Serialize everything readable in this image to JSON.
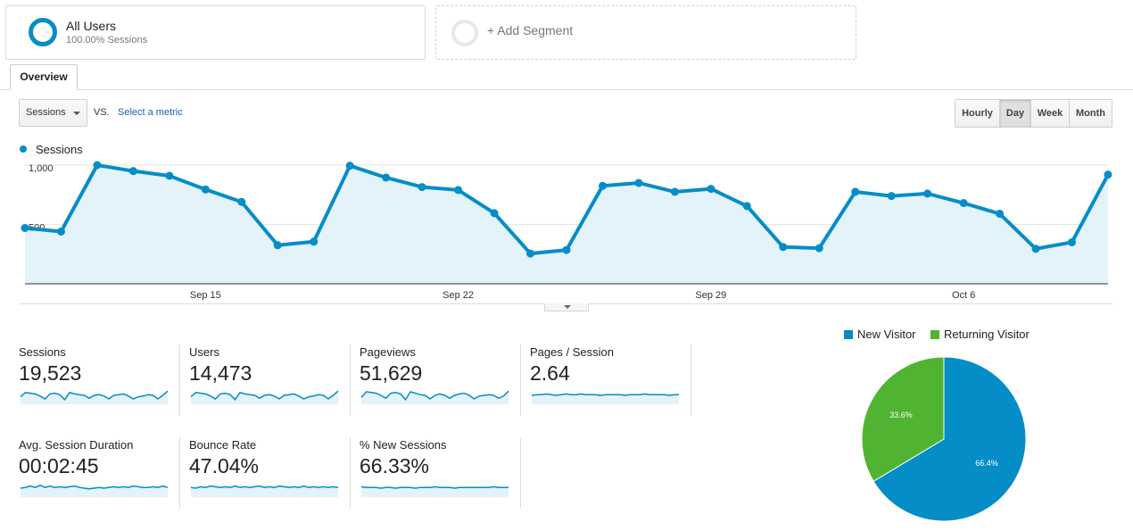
{
  "segments": {
    "all_users": {
      "title": "All Users",
      "subtitle": "100.00% Sessions"
    },
    "add_segment": {
      "label": "+ Add Segment"
    }
  },
  "tabs": [
    {
      "label": "Overview"
    }
  ],
  "controls": {
    "metric_select": "Sessions",
    "vs_label": "VS.",
    "select_metric": "Select a metric",
    "periods": [
      {
        "label": "Hourly",
        "active": false
      },
      {
        "label": "Day",
        "active": true
      },
      {
        "label": "Week",
        "active": false
      },
      {
        "label": "Month",
        "active": false
      }
    ]
  },
  "colors": {
    "series": "#058dc7",
    "area": "#e4f2f9",
    "new_visitor": "#058dc7",
    "returning_visitor": "#50b432"
  },
  "chart_data": [
    {
      "type": "line",
      "series": [
        {
          "name": "Sessions",
          "values": [
            470,
            440,
            1000,
            950,
            910,
            795,
            690,
            325,
            355,
            995,
            895,
            815,
            790,
            595,
            255,
            285,
            825,
            850,
            775,
            800,
            655,
            310,
            300,
            775,
            740,
            760,
            680,
            590,
            295,
            350,
            920
          ]
        }
      ],
      "x_ticks": [
        "Sep 15",
        "Sep 22",
        "Sep 29",
        "Oct 6"
      ],
      "y_ticks": [
        "500",
        "1,000"
      ],
      "ylim": [
        0,
        1000
      ],
      "grid": true,
      "legend": "top-left"
    },
    {
      "type": "pie",
      "categories": [
        "New Visitor",
        "Returning Visitor"
      ],
      "values": [
        66.4,
        33.6
      ],
      "labels": [
        "66.4%",
        "33.6%"
      ],
      "legend": "top"
    }
  ],
  "metrics": [
    {
      "label": "Sessions",
      "value": "19,523",
      "spark": [
        0.6,
        0.3,
        0.35,
        0.4,
        0.55,
        0.75,
        0.4,
        0.35,
        0.45,
        0.8,
        0.3,
        0.4,
        0.45,
        0.5,
        0.7,
        0.5,
        0.45,
        0.55,
        0.75,
        0.5,
        0.45,
        0.4,
        0.55,
        0.75,
        0.6,
        0.55,
        0.45,
        0.5,
        0.75,
        0.5,
        0.2
      ]
    },
    {
      "label": "Users",
      "value": "14,473",
      "spark": [
        0.6,
        0.3,
        0.35,
        0.4,
        0.55,
        0.75,
        0.4,
        0.35,
        0.45,
        0.8,
        0.3,
        0.4,
        0.45,
        0.5,
        0.7,
        0.5,
        0.45,
        0.55,
        0.75,
        0.5,
        0.45,
        0.4,
        0.55,
        0.75,
        0.6,
        0.55,
        0.45,
        0.5,
        0.75,
        0.5,
        0.2
      ]
    },
    {
      "label": "Pageviews",
      "value": "51,629",
      "spark": [
        0.65,
        0.25,
        0.3,
        0.35,
        0.5,
        0.7,
        0.35,
        0.3,
        0.4,
        0.8,
        0.25,
        0.35,
        0.45,
        0.5,
        0.75,
        0.5,
        0.4,
        0.5,
        0.7,
        0.5,
        0.4,
        0.35,
        0.5,
        0.75,
        0.55,
        0.5,
        0.45,
        0.5,
        0.7,
        0.55,
        0.2
      ]
    },
    {
      "label": "Pages / Session",
      "value": "2.64",
      "spark": [
        0.5,
        0.45,
        0.45,
        0.4,
        0.45,
        0.5,
        0.45,
        0.4,
        0.45,
        0.45,
        0.4,
        0.45,
        0.45,
        0.45,
        0.5,
        0.45,
        0.45,
        0.45,
        0.45,
        0.5,
        0.45,
        0.45,
        0.45,
        0.4,
        0.45,
        0.45,
        0.45,
        0.45,
        0.5,
        0.45,
        0.45
      ]
    },
    {
      "label": "Avg. Session Duration",
      "value": "00:02:45",
      "spark": [
        0.5,
        0.45,
        0.35,
        0.45,
        0.3,
        0.45,
        0.35,
        0.45,
        0.4,
        0.45,
        0.4,
        0.35,
        0.45,
        0.5,
        0.55,
        0.5,
        0.45,
        0.5,
        0.45,
        0.4,
        0.45,
        0.4,
        0.45,
        0.35,
        0.4,
        0.45,
        0.45,
        0.4,
        0.45,
        0.35,
        0.45
      ]
    },
    {
      "label": "Bounce Rate",
      "value": "47.04%",
      "spark": [
        0.45,
        0.5,
        0.4,
        0.45,
        0.35,
        0.4,
        0.45,
        0.4,
        0.45,
        0.35,
        0.45,
        0.4,
        0.45,
        0.4,
        0.35,
        0.45,
        0.4,
        0.45,
        0.35,
        0.4,
        0.45,
        0.4,
        0.45,
        0.35,
        0.45,
        0.4,
        0.45,
        0.4,
        0.45,
        0.4,
        0.45
      ]
    },
    {
      "label": "% New Sessions",
      "value": "66.33%",
      "spark": [
        0.4,
        0.45,
        0.45,
        0.45,
        0.5,
        0.45,
        0.45,
        0.5,
        0.45,
        0.45,
        0.45,
        0.5,
        0.45,
        0.45,
        0.45,
        0.4,
        0.45,
        0.45,
        0.45,
        0.5,
        0.45,
        0.45,
        0.45,
        0.45,
        0.45,
        0.45,
        0.45,
        0.4,
        0.45,
        0.45,
        0.45
      ]
    }
  ]
}
